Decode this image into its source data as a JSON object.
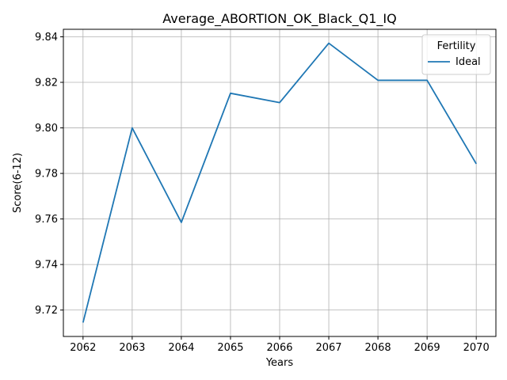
{
  "chart_data": {
    "type": "line",
    "title": "Average_ABORTION_OK_Black_Q1_IQ",
    "xlabel": "Years",
    "ylabel": "Score(6-12)",
    "x": [
      2062,
      2063,
      2064,
      2065,
      2066,
      2067,
      2068,
      2069,
      2070
    ],
    "series": [
      {
        "name": "Ideal",
        "color": "#1f77b4",
        "values": [
          9.7145,
          9.8,
          9.7585,
          9.8152,
          9.8111,
          9.8372,
          9.8209,
          9.8209,
          9.7842
        ]
      }
    ],
    "xticks": [
      "2062",
      "2063",
      "2064",
      "2065",
      "2066",
      "2067",
      "2068",
      "2069",
      "2070"
    ],
    "yticks": [
      "9.72",
      "9.74",
      "9.76",
      "9.78",
      "9.80",
      "9.82",
      "9.84"
    ],
    "xlim": [
      2061.6,
      2070.4
    ],
    "ylim": [
      9.7084,
      9.8433
    ],
    "grid": true,
    "legend": {
      "title": "Fertility",
      "position": "top-right"
    }
  }
}
